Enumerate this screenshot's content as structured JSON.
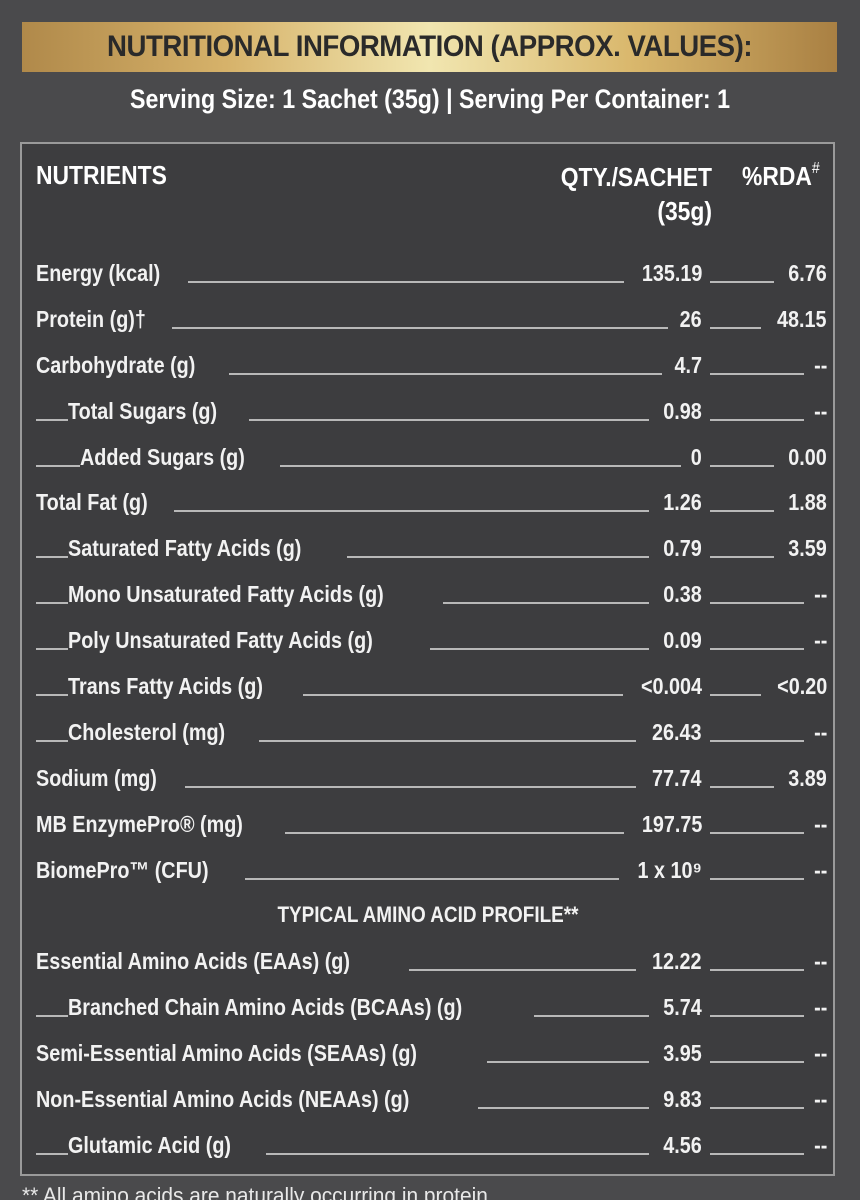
{
  "header": {
    "title": "NUTRITIONAL INFORMATION (APPROX. VALUES):",
    "serving": "Serving Size: 1 Sachet (35g) | Serving Per Container: 1"
  },
  "table": {
    "col_nutrients": "NUTRIENTS",
    "col_qty": "QTY./SACHET",
    "col_qty_sub": "(35g)",
    "col_rda": "%RDA",
    "col_rda_mark": "#",
    "rows": [
      {
        "name": "Energy (kcal)",
        "qty": "135.19",
        "rda": "6.76",
        "level": 0
      },
      {
        "name": "Protein (g)†",
        "qty": "26",
        "rda": "48.15",
        "level": 0
      },
      {
        "name": "Carbohydrate (g)",
        "qty": "4.7",
        "rda": "--",
        "level": 0
      },
      {
        "name": "Total Sugars (g)",
        "qty": "0.98",
        "rda": "--",
        "level": 1
      },
      {
        "name": "Added Sugars (g)",
        "qty": "0",
        "rda": "0.00",
        "level": 2
      },
      {
        "name": "Total Fat (g)",
        "qty": "1.26",
        "rda": "1.88",
        "level": 0
      },
      {
        "name": "Saturated Fatty Acids (g)",
        "qty": "0.79",
        "rda": "3.59",
        "level": 1
      },
      {
        "name": "Mono Unsaturated Fatty Acids (g)",
        "qty": "0.38",
        "rda": "--",
        "level": 1
      },
      {
        "name": "Poly Unsaturated Fatty Acids (g)",
        "qty": "0.09",
        "rda": "--",
        "level": 1
      },
      {
        "name": "Trans Fatty Acids (g)",
        "qty": "<0.004",
        "rda": "<0.20",
        "level": 1
      },
      {
        "name": "Cholesterol (mg)",
        "qty": "26.43",
        "rda": "--",
        "level": 1
      },
      {
        "name": "Sodium (mg)",
        "qty": "77.74",
        "rda": "3.89",
        "level": 0
      },
      {
        "name": "MB EnzymePro® (mg)",
        "qty": "197.75",
        "rda": "--",
        "level": 0
      },
      {
        "name": "BiomePro™ (CFU)",
        "qty": "1 x 10⁹",
        "rda": "--",
        "level": 0
      }
    ],
    "amino_heading": "TYPICAL AMINO ACID PROFILE**",
    "amino_rows": [
      {
        "name": "Essential Amino Acids (EAAs) (g)",
        "qty": "12.22",
        "rda": "--",
        "level": 0
      },
      {
        "name": "Branched Chain Amino Acids (BCAAs) (g)",
        "qty": "5.74",
        "rda": "--",
        "level": 1
      },
      {
        "name": "Semi-Essential Amino Acids (SEAAs) (g)",
        "qty": "3.95",
        "rda": "--",
        "level": 0
      },
      {
        "name": "Non-Essential Amino Acids (NEAAs) (g)",
        "qty": "9.83",
        "rda": "--",
        "level": 0
      },
      {
        "name": "Glutamic Acid (g)",
        "qty": "4.56",
        "rda": "--",
        "level": 1
      }
    ]
  },
  "footnote": "** All amino acids are naturally occurring in protein"
}
